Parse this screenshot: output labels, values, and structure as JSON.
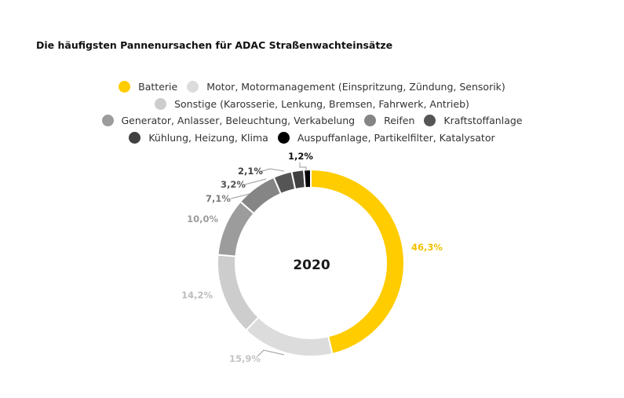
{
  "chart_data": {
    "type": "pie",
    "title": "Die häufigsten Pannenursachen für ADAC Straßenwachteinsätze",
    "center_label": "2020",
    "donut": true,
    "legend_position": "top",
    "slices": [
      {
        "name": "Batterie",
        "value": 46.3,
        "label": "46,3%",
        "color": "#ffcc00",
        "label_color": "#f2c200"
      },
      {
        "name": "Motor, Motormanagement (Einspritzung, Zündung, Sensorik)",
        "value": 15.9,
        "label": "15,9%",
        "color": "#dcdcdc",
        "label_color": "#c4c4c4"
      },
      {
        "name": "Sonstige (Karosserie, Lenkung, Bremsen, Fahrwerk, Antrieb)",
        "value": 14.2,
        "label": "14,2%",
        "color": "#cdcdcd",
        "label_color": "#bdbdbd"
      },
      {
        "name": "Generator, Anlasser, Beleuchtung, Verkabelung",
        "value": 10.0,
        "label": "10,0%",
        "color": "#9c9c9c",
        "label_color": "#9c9c9c"
      },
      {
        "name": "Reifen",
        "value": 7.1,
        "label": "7,1%",
        "color": "#858585",
        "label_color": "#7a7a7a"
      },
      {
        "name": "Kraftstoffanlage",
        "value": 3.2,
        "label": "3,2%",
        "color": "#555555",
        "label_color": "#555555"
      },
      {
        "name": "Kühlung, Heizung, Klima",
        "value": 2.1,
        "label": "2,1%",
        "color": "#404040",
        "label_color": "#404040"
      },
      {
        "name": "Auspuffanlage, Partikelfilter, Katalysator",
        "value": 1.2,
        "label": "1,2%",
        "color": "#000000",
        "label_color": "#111111"
      }
    ]
  }
}
